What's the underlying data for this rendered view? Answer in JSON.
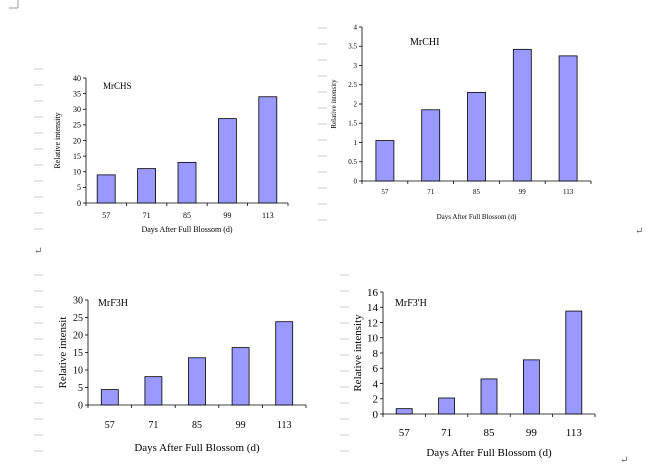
{
  "colors": {
    "bar": "#9999ff",
    "axis": "#000000",
    "margin_marks": "#c8c8c8"
  },
  "return_mark": "↵",
  "chart_data": [
    {
      "type": "bar",
      "title": "MrCHS",
      "categories": [
        "57",
        "71",
        "85",
        "99",
        "113"
      ],
      "values": [
        9,
        11,
        13,
        27,
        34
      ],
      "ylabel": "Relative intensity",
      "xlabel": "Days After Full Blossom (d)",
      "ylim": [
        0,
        40
      ],
      "yticks": [
        "0",
        "5",
        "10",
        "15",
        "20",
        "25",
        "30",
        "35",
        "40"
      ],
      "grid": false,
      "legend": "none"
    },
    {
      "type": "bar",
      "title": "MrCHI",
      "categories": [
        "57",
        "71",
        "85",
        "99",
        "113"
      ],
      "values": [
        1.05,
        1.85,
        2.3,
        3.42,
        3.25
      ],
      "ylabel": "Relative intensity",
      "xlabel": "Days After Full Blossom (d)",
      "ylim": [
        0,
        4
      ],
      "yticks": [
        "0",
        "0.5",
        "1",
        "1.5",
        "2",
        "2.5",
        "3",
        "3.5",
        "4"
      ],
      "grid": false,
      "legend": "none"
    },
    {
      "type": "bar",
      "title": "MrF3H",
      "categories": [
        "57",
        "71",
        "85",
        "99",
        "113"
      ],
      "values": [
        4.4,
        8.1,
        13.5,
        16.4,
        23.8
      ],
      "ylabel": "Relative intensit",
      "xlabel": "Days After Full Blossom (d)",
      "ylim": [
        0,
        30
      ],
      "yticks": [
        "0",
        "5",
        "10",
        "15",
        "20",
        "25",
        "30"
      ],
      "grid": false,
      "legend": "none"
    },
    {
      "type": "bar",
      "title": "MrF3'H",
      "categories": [
        "57",
        "71",
        "85",
        "99",
        "113"
      ],
      "values": [
        0.7,
        2.1,
        4.6,
        7.1,
        13.5
      ],
      "ylabel": "Relative intensity",
      "xlabel": "Days After Full Blossom (d)",
      "ylim": [
        0,
        16
      ],
      "yticks": [
        "0",
        "2",
        "4",
        "6",
        "8",
        "10",
        "12",
        "14",
        "16"
      ],
      "grid": false,
      "legend": "none"
    }
  ]
}
